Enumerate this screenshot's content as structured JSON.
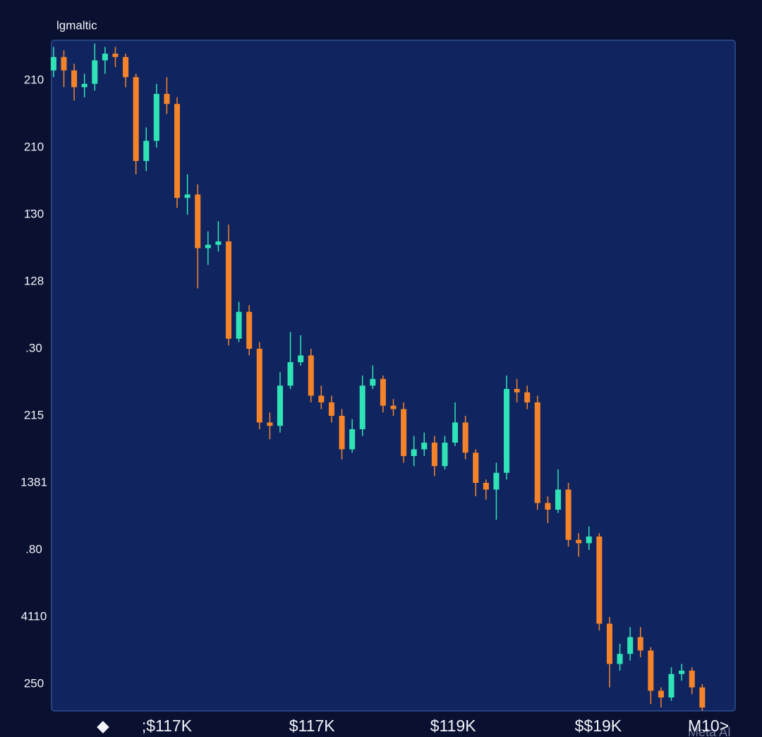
{
  "chart_data": {
    "type": "candlestick",
    "title": "lgmaltic",
    "watermark": "Meta AI",
    "up_color": "#2fe3b6",
    "down_color": "#f5832a",
    "open": [
      9.55,
      9.75,
      9.55,
      9.3,
      9.35,
      9.7,
      9.8,
      9.75,
      9.45,
      8.2,
      8.5,
      9.2,
      9.05,
      7.65,
      7.7,
      6.9,
      6.95,
      7.0,
      5.55,
      5.95,
      5.4,
      4.3,
      4.25,
      4.85,
      5.2,
      5.3,
      4.7,
      4.6,
      4.4,
      3.9,
      4.2,
      4.85,
      4.95,
      4.55,
      4.5,
      3.8,
      3.9,
      4.0,
      3.65,
      4.0,
      4.3,
      3.85,
      3.4,
      3.3,
      3.55,
      4.8,
      4.75,
      4.6,
      3.1,
      3.0,
      3.3,
      2.55,
      2.5,
      2.6,
      1.3,
      0.7,
      0.85,
      1.1,
      0.9,
      0.3,
      0.2,
      0.55,
      0.6,
      0.35
    ],
    "high": [
      9.9,
      9.85,
      9.65,
      9.5,
      9.95,
      9.9,
      9.9,
      9.8,
      9.5,
      8.7,
      9.35,
      9.45,
      9.15,
      8.0,
      7.85,
      7.15,
      7.3,
      7.25,
      6.1,
      6.05,
      5.5,
      4.45,
      5.05,
      5.65,
      5.6,
      5.4,
      4.85,
      4.7,
      4.5,
      4.35,
      5.0,
      5.15,
      5.0,
      4.65,
      4.6,
      4.1,
      4.15,
      4.1,
      4.1,
      4.6,
      4.4,
      3.9,
      3.45,
      3.7,
      5.0,
      4.95,
      4.85,
      4.7,
      3.2,
      3.6,
      3.4,
      2.65,
      2.75,
      2.65,
      1.4,
      1.0,
      1.25,
      1.25,
      0.95,
      0.35,
      0.65,
      0.7,
      0.65,
      0.4
    ],
    "low": [
      9.45,
      9.3,
      9.1,
      9.15,
      9.25,
      9.5,
      9.6,
      9.3,
      8.0,
      8.05,
      8.4,
      8.9,
      7.5,
      7.4,
      6.3,
      6.65,
      6.85,
      5.45,
      5.5,
      5.3,
      4.2,
      4.05,
      4.15,
      4.8,
      5.15,
      4.6,
      4.5,
      4.3,
      3.75,
      3.85,
      4.1,
      4.8,
      4.45,
      4.4,
      3.7,
      3.65,
      3.8,
      3.5,
      3.6,
      3.95,
      3.75,
      3.2,
      3.15,
      2.85,
      3.45,
      4.6,
      4.5,
      3.0,
      2.8,
      2.95,
      2.45,
      2.3,
      2.4,
      1.2,
      0.35,
      0.6,
      0.75,
      0.8,
      0.1,
      0.05,
      0.15,
      0.45,
      0.25,
      0.0
    ],
    "close": [
      9.75,
      9.55,
      9.3,
      9.35,
      9.7,
      9.8,
      9.75,
      9.45,
      8.2,
      8.5,
      9.2,
      9.05,
      7.65,
      7.7,
      6.9,
      6.95,
      7.0,
      5.55,
      5.95,
      5.4,
      4.3,
      4.25,
      4.85,
      5.2,
      5.3,
      4.7,
      4.6,
      4.4,
      3.9,
      4.2,
      4.85,
      4.95,
      4.55,
      4.5,
      3.8,
      3.9,
      4.0,
      3.65,
      4.0,
      4.3,
      3.85,
      3.4,
      3.3,
      3.55,
      4.8,
      4.75,
      4.6,
      3.1,
      3.0,
      3.3,
      2.55,
      2.5,
      2.6,
      1.3,
      0.7,
      0.85,
      1.1,
      0.9,
      0.3,
      0.2,
      0.55,
      0.6,
      0.35,
      0.05
    ],
    "xlim": [
      -0.2,
      66.2
    ],
    "xticks": [
      {
        "value": 4.8,
        "label": "◆"
      },
      {
        "value": 11.0,
        "label": ";$117K"
      },
      {
        "value": 25.1,
        "label": "$117K"
      },
      {
        "value": 38.8,
        "label": "$119K"
      },
      {
        "value": 52.9,
        "label": "$$19K"
      },
      {
        "value": 63.6,
        "label": "M10>"
      }
    ],
    "ylim": [
      0,
      10
    ],
    "yticks": [
      {
        "value": 0.4,
        "label": "250"
      },
      {
        "value": 1.4,
        "label": "4110"
      },
      {
        "value": 2.4,
        "label": ".80"
      },
      {
        "value": 3.4,
        "label": "1381"
      },
      {
        "value": 4.4,
        "label": "215"
      },
      {
        "value": 5.4,
        "label": ".30"
      },
      {
        "value": 6.4,
        "label": "128"
      },
      {
        "value": 7.4,
        "label": "1̈30"
      },
      {
        "value": 8.4,
        "label": "210"
      },
      {
        "value": 9.4,
        "label": "210"
      }
    ],
    "grid": false
  }
}
